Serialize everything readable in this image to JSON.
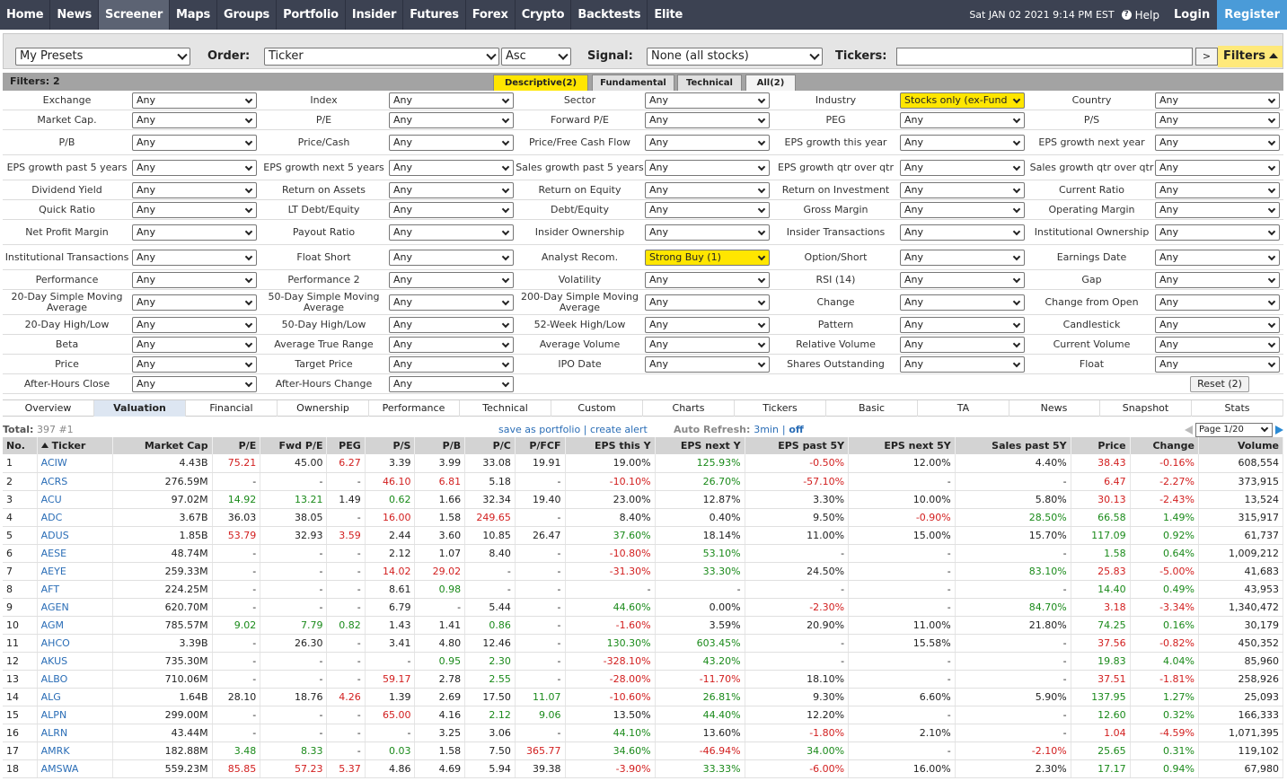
{
  "nav": {
    "items": [
      "Home",
      "News",
      "Screener",
      "Maps",
      "Groups",
      "Portfolio",
      "Insider",
      "Futures",
      "Forex",
      "Crypto",
      "Backtests",
      "Elite"
    ],
    "active": "Screener",
    "date": "Sat JAN 02 2021 9:14 PM EST",
    "help": "Help",
    "login": "Login",
    "register": "Register"
  },
  "presets": {
    "preset_value": "My Presets",
    "order_label": "Order:",
    "order_value": "Ticker",
    "direction_value": "Asc",
    "signal_label": "Signal:",
    "signal_value": "None (all stocks)",
    "tickers_label": "Tickers:",
    "tickers_value": "",
    "go_label": ">",
    "filters_label": "Filters"
  },
  "filterbar": {
    "count": "Filters: 2",
    "tabs": [
      "Descriptive(2)",
      "Fundamental",
      "Technical",
      "All(2)"
    ]
  },
  "filters": [
    [
      [
        "Exchange",
        "Any"
      ],
      [
        "Index",
        "Any"
      ],
      [
        "Sector",
        "Any"
      ],
      [
        "Industry",
        "Stocks only (ex-Fund"
      ],
      [
        "Country",
        "Any"
      ]
    ],
    [
      [
        "Market Cap.",
        "Any"
      ],
      [
        "P/E",
        "Any"
      ],
      [
        "Forward P/E",
        "Any"
      ],
      [
        "PEG",
        "Any"
      ],
      [
        "P/S",
        "Any"
      ]
    ],
    [
      [
        "P/B",
        "Any"
      ],
      [
        "Price/Cash",
        "Any"
      ],
      [
        "Price/Free Cash Flow",
        "Any"
      ],
      [
        "EPS growth this year",
        "Any"
      ],
      [
        "EPS growth next year",
        "Any"
      ]
    ],
    [
      [
        "EPS growth past 5 years",
        "Any"
      ],
      [
        "EPS growth next 5 years",
        "Any"
      ],
      [
        "Sales growth past 5 years",
        "Any"
      ],
      [
        "EPS growth qtr over qtr",
        "Any"
      ],
      [
        "Sales growth qtr over qtr",
        "Any"
      ]
    ],
    [
      [
        "Dividend Yield",
        "Any"
      ],
      [
        "Return on Assets",
        "Any"
      ],
      [
        "Return on Equity",
        "Any"
      ],
      [
        "Return on Investment",
        "Any"
      ],
      [
        "Current Ratio",
        "Any"
      ]
    ],
    [
      [
        "Quick Ratio",
        "Any"
      ],
      [
        "LT Debt/Equity",
        "Any"
      ],
      [
        "Debt/Equity",
        "Any"
      ],
      [
        "Gross Margin",
        "Any"
      ],
      [
        "Operating Margin",
        "Any"
      ]
    ],
    [
      [
        "Net Profit Margin",
        "Any"
      ],
      [
        "Payout Ratio",
        "Any"
      ],
      [
        "Insider Ownership",
        "Any"
      ],
      [
        "Insider Transactions",
        "Any"
      ],
      [
        "Institutional Ownership",
        "Any"
      ]
    ],
    [
      [
        "Institutional Transactions",
        "Any"
      ],
      [
        "Float Short",
        "Any"
      ],
      [
        "Analyst Recom.",
        "Strong Buy (1)"
      ],
      [
        "Option/Short",
        "Any"
      ],
      [
        "Earnings Date",
        "Any"
      ]
    ],
    [
      [
        "Performance",
        "Any"
      ],
      [
        "Performance 2",
        "Any"
      ],
      [
        "Volatility",
        "Any"
      ],
      [
        "RSI (14)",
        "Any"
      ],
      [
        "Gap",
        "Any"
      ]
    ],
    [
      [
        "20-Day Simple Moving Average",
        "Any"
      ],
      [
        "50-Day Simple Moving Average",
        "Any"
      ],
      [
        "200-Day Simple Moving Average",
        "Any"
      ],
      [
        "Change",
        "Any"
      ],
      [
        "Change from Open",
        "Any"
      ]
    ],
    [
      [
        "20-Day High/Low",
        "Any"
      ],
      [
        "50-Day High/Low",
        "Any"
      ],
      [
        "52-Week High/Low",
        "Any"
      ],
      [
        "Pattern",
        "Any"
      ],
      [
        "Candlestick",
        "Any"
      ]
    ],
    [
      [
        "Beta",
        "Any"
      ],
      [
        "Average True Range",
        "Any"
      ],
      [
        "Average Volume",
        "Any"
      ],
      [
        "Relative Volume",
        "Any"
      ],
      [
        "Current Volume",
        "Any"
      ]
    ],
    [
      [
        "Price",
        "Any"
      ],
      [
        "Target Price",
        "Any"
      ],
      [
        "IPO Date",
        "Any"
      ],
      [
        "Shares Outstanding",
        "Any"
      ],
      [
        "Float",
        "Any"
      ]
    ],
    [
      [
        "After-Hours Close",
        "Any"
      ],
      [
        "After-Hours Change",
        "Any"
      ]
    ]
  ],
  "reset_label": "Reset (2)",
  "view_tabs": [
    "Overview",
    "Valuation",
    "Financial",
    "Ownership",
    "Performance",
    "Technical",
    "Custom",
    "Charts",
    "Tickers",
    "Basic",
    "TA",
    "News",
    "Snapshot",
    "Stats"
  ],
  "active_view": "Valuation",
  "info": {
    "total_label": "Total:",
    "total_value": "397 #1",
    "save_portfolio": "save as portfolio",
    "sep": "|",
    "create_alert": "create alert",
    "auto_refresh_label": "Auto Refresh:",
    "auto_refresh_value": "3min",
    "off": "off",
    "page": "Page 1/20"
  },
  "table": {
    "columns": [
      "No.",
      "Ticker",
      "Market Cap",
      "P/E",
      "Fwd P/E",
      "PEG",
      "P/S",
      "P/B",
      "P/C",
      "P/FCF",
      "EPS this Y",
      "EPS next Y",
      "EPS past 5Y",
      "EPS next 5Y",
      "Sales past 5Y",
      "Price",
      "Change",
      "Volume"
    ],
    "rows": [
      [
        "1",
        "ACIW",
        "4.43B",
        "75.21",
        "45.00",
        "6.27",
        "3.39",
        "3.99",
        "33.08",
        "19.91",
        "19.00%",
        "125.93%",
        "-0.50%",
        "12.00%",
        "4.40%",
        "38.43",
        "-0.16%",
        "608,554"
      ],
      [
        "2",
        "ACRS",
        "276.59M",
        "-",
        "-",
        "-",
        "46.10",
        "6.81",
        "5.18",
        "-",
        "-10.10%",
        "26.70%",
        "-57.10%",
        "-",
        "-",
        "6.47",
        "-2.27%",
        "373,915"
      ],
      [
        "3",
        "ACU",
        "97.02M",
        "14.92",
        "13.21",
        "1.49",
        "0.62",
        "1.66",
        "32.34",
        "19.40",
        "23.00%",
        "12.87%",
        "3.30%",
        "10.00%",
        "5.80%",
        "30.13",
        "-2.43%",
        "13,524"
      ],
      [
        "4",
        "ADC",
        "3.67B",
        "36.03",
        "38.05",
        "-",
        "16.00",
        "1.58",
        "249.65",
        "-",
        "8.40%",
        "0.40%",
        "9.50%",
        "-0.90%",
        "28.50%",
        "66.58",
        "1.49%",
        "315,917"
      ],
      [
        "5",
        "ADUS",
        "1.85B",
        "53.79",
        "32.93",
        "3.59",
        "2.44",
        "3.60",
        "10.85",
        "26.47",
        "37.60%",
        "18.14%",
        "11.00%",
        "15.00%",
        "15.70%",
        "117.09",
        "0.92%",
        "61,737"
      ],
      [
        "6",
        "AESE",
        "48.74M",
        "-",
        "-",
        "-",
        "2.12",
        "1.07",
        "8.40",
        "-",
        "-10.80%",
        "53.10%",
        "-",
        "-",
        "-",
        "1.58",
        "0.64%",
        "1,009,212"
      ],
      [
        "7",
        "AEYE",
        "259.33M",
        "-",
        "-",
        "-",
        "14.02",
        "29.02",
        "-",
        "-",
        "-31.30%",
        "33.30%",
        "24.50%",
        "-",
        "83.10%",
        "25.83",
        "-5.00%",
        "41,683"
      ],
      [
        "8",
        "AFT",
        "224.25M",
        "-",
        "-",
        "-",
        "8.61",
        "0.98",
        "-",
        "-",
        "-",
        "-",
        "-",
        "-",
        "-",
        "14.40",
        "0.49%",
        "43,953"
      ],
      [
        "9",
        "AGEN",
        "620.70M",
        "-",
        "-",
        "-",
        "6.79",
        "-",
        "5.44",
        "-",
        "44.60%",
        "0.00%",
        "-2.30%",
        "-",
        "84.70%",
        "3.18",
        "-3.34%",
        "1,340,472"
      ],
      [
        "10",
        "AGM",
        "785.57M",
        "9.02",
        "7.79",
        "0.82",
        "1.43",
        "1.41",
        "0.86",
        "-",
        "-1.60%",
        "3.59%",
        "20.90%",
        "11.00%",
        "21.80%",
        "74.25",
        "0.16%",
        "30,179"
      ],
      [
        "11",
        "AHCO",
        "3.39B",
        "-",
        "26.30",
        "-",
        "3.41",
        "4.80",
        "12.46",
        "-",
        "130.30%",
        "603.45%",
        "-",
        "15.58%",
        "-",
        "37.56",
        "-0.82%",
        "450,352"
      ],
      [
        "12",
        "AKUS",
        "735.30M",
        "-",
        "-",
        "-",
        "-",
        "0.95",
        "2.30",
        "-",
        "-328.10%",
        "43.20%",
        "-",
        "-",
        "-",
        "19.83",
        "4.04%",
        "85,960"
      ],
      [
        "13",
        "ALBO",
        "710.06M",
        "-",
        "-",
        "-",
        "59.17",
        "2.78",
        "2.55",
        "-",
        "-28.00%",
        "-11.70%",
        "18.10%",
        "-",
        "-",
        "37.51",
        "-1.81%",
        "258,926"
      ],
      [
        "14",
        "ALG",
        "1.64B",
        "28.10",
        "18.76",
        "4.26",
        "1.39",
        "2.69",
        "17.50",
        "11.07",
        "-10.60%",
        "26.81%",
        "9.30%",
        "6.60%",
        "5.90%",
        "137.95",
        "1.27%",
        "25,093"
      ],
      [
        "15",
        "ALPN",
        "299.00M",
        "-",
        "-",
        "-",
        "65.00",
        "4.16",
        "2.12",
        "9.06",
        "13.50%",
        "44.40%",
        "12.20%",
        "-",
        "-",
        "12.60",
        "0.32%",
        "166,333"
      ],
      [
        "16",
        "ALRN",
        "43.44M",
        "-",
        "-",
        "-",
        "-",
        "3.25",
        "3.06",
        "-",
        "44.10%",
        "13.60%",
        "-1.80%",
        "2.10%",
        "-",
        "1.04",
        "-4.59%",
        "1,071,395"
      ],
      [
        "17",
        "AMRK",
        "182.88M",
        "3.48",
        "8.33",
        "-",
        "0.03",
        "1.58",
        "7.50",
        "365.77",
        "34.60%",
        "-46.94%",
        "34.00%",
        "-",
        "-2.10%",
        "25.65",
        "0.31%",
        "119,102"
      ],
      [
        "18",
        "AMSWA",
        "559.23M",
        "85.85",
        "57.23",
        "5.37",
        "4.86",
        "4.69",
        "5.94",
        "39.38",
        "-3.90%",
        "33.33%",
        "-6.00%",
        "16.00%",
        "2.30%",
        "17.17",
        "0.94%",
        "67,980"
      ]
    ],
    "colors": [
      [
        "",
        "",
        "",
        "r",
        "",
        "r",
        "",
        "",
        "",
        "",
        "",
        "g",
        "r",
        "",
        "",
        "r",
        "r",
        ""
      ],
      [
        "",
        "",
        "",
        "",
        "",
        "",
        "r",
        "r",
        "",
        "",
        "r",
        "g",
        "r",
        "",
        "",
        "r",
        "r",
        ""
      ],
      [
        "",
        "",
        "",
        "g",
        "g",
        "",
        "g",
        "",
        "",
        "",
        "",
        "",
        "",
        "",
        "",
        "r",
        "r",
        ""
      ],
      [
        "",
        "",
        "",
        "",
        "",
        "",
        "r",
        "",
        "r",
        "",
        "",
        "",
        "",
        "r",
        "g",
        "g",
        "g",
        ""
      ],
      [
        "",
        "",
        "",
        "r",
        "",
        "r",
        "",
        "",
        "",
        "",
        "g",
        "",
        "",
        "",
        "",
        "g",
        "g",
        ""
      ],
      [
        "",
        "",
        "",
        "",
        "",
        "",
        "",
        "",
        "",
        "",
        "r",
        "g",
        "",
        "",
        "",
        "g",
        "g",
        ""
      ],
      [
        "",
        "",
        "",
        "",
        "",
        "",
        "r",
        "r",
        "",
        "",
        "r",
        "g",
        "",
        "",
        "g",
        "r",
        "r",
        ""
      ],
      [
        "",
        "",
        "",
        "",
        "",
        "",
        "",
        "g",
        "",
        "",
        "",
        "",
        "",
        "",
        "",
        "g",
        "g",
        ""
      ],
      [
        "",
        "",
        "",
        "",
        "",
        "",
        "",
        "",
        "",
        "",
        "g",
        "",
        "r",
        "",
        "g",
        "r",
        "r",
        ""
      ],
      [
        "",
        "",
        "",
        "g",
        "g",
        "g",
        "",
        "",
        "g",
        "",
        "r",
        "",
        "",
        "",
        "",
        "g",
        "g",
        ""
      ],
      [
        "",
        "",
        "",
        "",
        "",
        "",
        "",
        "",
        "",
        "",
        "g",
        "g",
        "",
        "",
        "",
        "r",
        "r",
        ""
      ],
      [
        "",
        "",
        "",
        "",
        "",
        "",
        "",
        "g",
        "g",
        "",
        "r",
        "g",
        "",
        "",
        "",
        "g",
        "g",
        ""
      ],
      [
        "",
        "",
        "",
        "",
        "",
        "",
        "r",
        "",
        "g",
        "",
        "r",
        "r",
        "",
        "",
        "",
        "r",
        "r",
        ""
      ],
      [
        "",
        "",
        "",
        "",
        "",
        "r",
        "",
        "",
        "",
        "g",
        "r",
        "g",
        "",
        "",
        "",
        "g",
        "g",
        ""
      ],
      [
        "",
        "",
        "",
        "",
        "",
        "",
        "r",
        "",
        "g",
        "g",
        "",
        "g",
        "",
        "",
        "",
        "g",
        "g",
        ""
      ],
      [
        "",
        "",
        "",
        "",
        "",
        "",
        "",
        "",
        "",
        "",
        "g",
        "",
        "r",
        "",
        "",
        "r",
        "r",
        ""
      ],
      [
        "",
        "",
        "",
        "g",
        "g",
        "",
        "g",
        "",
        "",
        "r",
        "g",
        "r",
        "g",
        "",
        "r",
        "g",
        "g",
        ""
      ],
      [
        "",
        "",
        "",
        "r",
        "r",
        "r",
        "",
        "",
        "",
        "",
        "r",
        "g",
        "r",
        "",
        "",
        "g",
        "g",
        ""
      ]
    ]
  },
  "colors": {
    "nav_bg": "#3c4252",
    "accent_blue": "#4a9bd8",
    "highlight_yellow": "#ffe600",
    "positive": "#1a8a1a",
    "negative": "#d21e1e",
    "link": "#2a6db6"
  }
}
